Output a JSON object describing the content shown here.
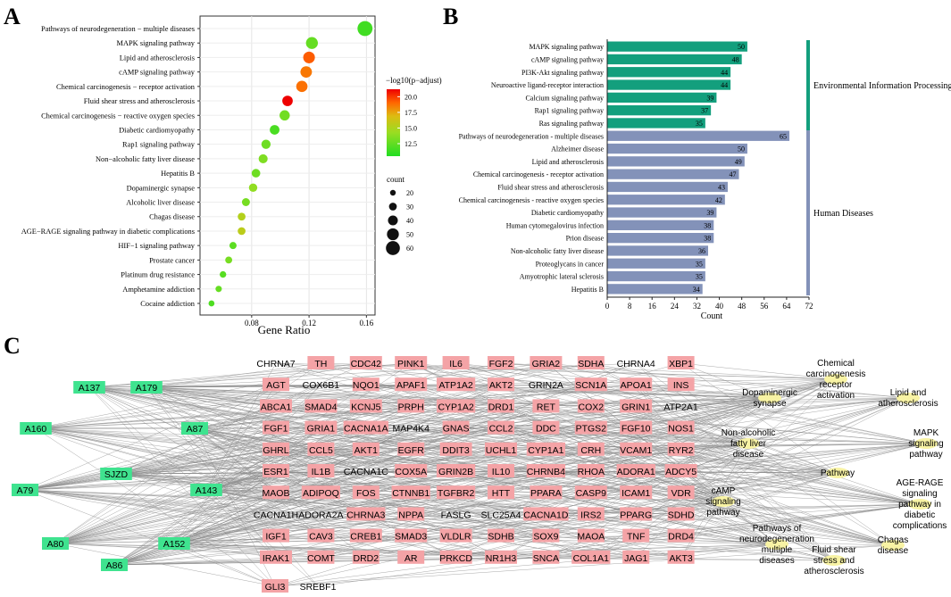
{
  "panels": {
    "a": "A",
    "b": "B",
    "c": "C"
  },
  "colors": {
    "env": "#139f7d",
    "human": "#8392b9",
    "gene": "#f4a3a6",
    "compound": "#3fe38f",
    "pathway": "#f8f3a4",
    "edge": "#8c8c8c"
  },
  "chart_data": [
    {
      "type": "scatter",
      "panel": "A",
      "xlabel": "Gene Ratio",
      "xlim": [
        0.044,
        0.166
      ],
      "xticks": [
        0.08,
        0.12,
        0.16
      ],
      "xtick_labels": [
        "0.08",
        "0.12",
        "0.16"
      ],
      "categories": [
        "Pathways of neurodegeneration − multiple diseases",
        "MAPK signaling pathway",
        "Lipid and atherosclerosis",
        "cAMP signaling pathway",
        "Chemical carcinogenesis − receptor activation",
        "Fluid shear stress and atherosclerosis",
        "Chemical carcinogenesis − reactive oxygen species",
        "Diabetic cardiomyopathy",
        "Rap1 signaling pathway",
        "Non−alcoholic fatty liver disease",
        "Hepatitis B",
        "Dopaminergic synapse",
        "Alcoholic liver disease",
        "Chagas disease",
        "AGE−RAGE signaling pathway in diabetic complications",
        "HIF−1 signaling pathway",
        "Prostate cancer",
        "Platinum drug resistance",
        "Amphetamine addiction",
        "Cocaine addiction"
      ],
      "x": [
        0.159,
        0.122,
        0.12,
        0.118,
        0.115,
        0.105,
        0.103,
        0.096,
        0.09,
        0.088,
        0.083,
        0.081,
        0.076,
        0.073,
        0.073,
        0.067,
        0.064,
        0.06,
        0.057,
        0.052
      ],
      "count": [
        65,
        50,
        49,
        48,
        47,
        43,
        42,
        39,
        37,
        36,
        34,
        33,
        31,
        30,
        30,
        27,
        26,
        24,
        23,
        21
      ],
      "neglog10_padj": [
        11.2,
        12.0,
        18.8,
        18.0,
        18.2,
        21.2,
        12.3,
        11.4,
        12.2,
        12.6,
        12.2,
        13.0,
        12.4,
        14.2,
        14.5,
        11.8,
        12.4,
        11.7,
        12.0,
        11.5
      ],
      "color_legend": {
        "title": "−log10(p−adjust)",
        "ticks": [
          "20.0",
          "17.5",
          "15.0",
          "12.5"
        ],
        "range": [
          10.5,
          21.2
        ],
        "colors": [
          "#22dd22",
          "#99dd22",
          "#ddbb11",
          "#ff6600",
          "#ee0000"
        ]
      },
      "size_legend": {
        "title": "count",
        "values": [
          20,
          30,
          40,
          50,
          60
        ]
      }
    },
    {
      "type": "bar",
      "panel": "B",
      "orientation": "horizontal",
      "xlabel": "Count",
      "xlim": [
        0,
        72
      ],
      "xticks": [
        0,
        8,
        16,
        24,
        32,
        40,
        48,
        56,
        64,
        72
      ],
      "series": [
        {
          "name": "Environmental Information Processing",
          "categories": [
            "MAPK signaling pathway",
            "cAMP signaling pathway",
            "PI3K-Akt signaling pathway",
            "Neuroactive ligand-receptor interaction",
            "Calcium signaling pathway",
            "Rap1 signaling pathway",
            "Ras signaling pathway"
          ],
          "values": [
            50,
            48,
            44,
            44,
            39,
            37,
            35
          ]
        },
        {
          "name": "Human Diseases",
          "categories": [
            "Pathways of neurodegeneration - multiple diseases",
            "Alzheimer disease",
            "Lipid and atherosclerosis",
            "Chemical carcinogenesis - receptor activation",
            "Fluid shear stress and atherosclerosis",
            "Chemical carcinogenesis - reactive oxygen species",
            "Diabetic cardiomyopathy",
            "Human cytomegalovirus infection",
            "Prion disease",
            "Non-alcoholic fatty liver disease",
            "Proteoglycans in cancer",
            "Amyotrophic lateral sclerosis",
            "Hepatitis B"
          ],
          "values": [
            65,
            50,
            49,
            47,
            43,
            42,
            39,
            38,
            38,
            36,
            35,
            35,
            34
          ]
        }
      ]
    }
  ],
  "network": {
    "compounds": [
      "A137",
      "A179",
      "A160",
      "A87",
      "SJZD",
      "A79",
      "A143",
      "A80",
      "A152",
      "A86"
    ],
    "genes": [
      [
        "CHRNA7",
        "TH",
        "CDC42",
        "PINK1",
        "IL6",
        "FGF2",
        "GRIA2",
        "SDHA",
        "CHRNA4",
        "XBP1"
      ],
      [
        "AGT",
        "COX6B1",
        "NQO1",
        "APAF1",
        "ATP1A2",
        "AKT2",
        "GRIN2A",
        "SCN1A",
        "APOA1",
        "INS"
      ],
      [
        "ABCA1",
        "SMAD4",
        "KCNJ5",
        "PRPH",
        "CYP1A2",
        "DRD1",
        "RET",
        "COX2",
        "GRIN1",
        "ATP2A1"
      ],
      [
        "FGF1",
        "GRIA1",
        "CACNA1A",
        "MAP4K4",
        "GNAS",
        "CCL2",
        "DDC",
        "PTGS2",
        "FGF10",
        "NOS1"
      ],
      [
        "GHRL",
        "CCL5",
        "AKT1",
        "EGFR",
        "DDIT3",
        "UCHL1",
        "CYP1A1",
        "CRH",
        "VCAM1",
        "RYR2"
      ],
      [
        "ESR1",
        "IL1B",
        "CACNA1C",
        "COX5A",
        "GRIN2B",
        "IL10",
        "CHRNB4",
        "RHOA",
        "ADORA1",
        "ADCY5"
      ],
      [
        "MAOB",
        "ADIPOQ",
        "FOS",
        "CTNNB1",
        "TGFBR2",
        "HTT",
        "PPARA",
        "CASP9",
        "ICAM1",
        "VDR"
      ],
      [
        "CACNA1H",
        "ADORA2A",
        "CHRNA3",
        "NPPA",
        "FASLG",
        "SLC25A4",
        "CACNA1D",
        "IRS2",
        "PPARG",
        "SDHD"
      ],
      [
        "IGF1",
        "CAV3",
        "CREB1",
        "SMAD3",
        "VLDLR",
        "SDHB",
        "SOX9",
        "MAOA",
        "TNF",
        "DRD4"
      ],
      [
        "IRAK1",
        "COMT",
        "DRD2",
        "AR",
        "PRKCD",
        "NR1H3",
        "SNCA",
        "COL1A1",
        "JAG1",
        "AKT3"
      ],
      [
        "GLI3",
        "SREBF1"
      ]
    ],
    "highlighted_genes": [
      "TH",
      "IL6",
      "SDHA",
      "XBP1",
      "AGT",
      "NQO1",
      "ATP1A2",
      "AKT2",
      "APOA1",
      "INS",
      "ABCA1",
      "KCNJ5",
      "PRPH",
      "CYP1A2",
      "DRD1",
      "RET",
      "COX2",
      "GRIN1",
      "FGF1",
      "GRIA1",
      "GNAS",
      "CCL2",
      "DDC",
      "FGF10",
      "NOS1",
      "GHRL",
      "CCL5",
      "AKT1",
      "EGFR",
      "DDIT3",
      "UCHL1",
      "CYP1A1",
      "CRH",
      "VCAM1",
      "RYR2",
      "ESR1",
      "IL1B",
      "IL10",
      "RHOA",
      "ADORA1",
      "ADCY5",
      "MAOB",
      "FOS",
      "HTT",
      "CASP9",
      "ICAM1",
      "VDR",
      "NPPA",
      "IRS2",
      "SDHD",
      "IGF1",
      "SMAD3",
      "SDHB",
      "TNF",
      "DRD4",
      "IRAK1",
      "COMT",
      "DRD2",
      "AR",
      "SNCA",
      "COL1A1",
      "JAG1",
      "AKT3",
      "GLI3",
      "PINK1",
      "FGF2",
      "GRIA2",
      "CDC42",
      "SMAD4",
      "APAF1",
      "DRD1",
      "SCN1A",
      "CACNA1A",
      "PTGS2",
      "CCL5",
      "COX5A",
      "GRIN2B",
      "CHRNB4",
      "CTNNB1",
      "PPARA",
      "PPARG",
      "CHRNA3",
      "CACNA1D",
      "CAV3",
      "SOX9",
      "VLDLR",
      "PRKCD",
      "NR1H3",
      "CREB1",
      "TGFBR2",
      "ADIPOQ",
      "MAOA"
    ],
    "pathways": [
      "Chemical carcinogenesis receptor activation",
      "Dopaminergic synapse",
      "Lipid and atherosclerosis",
      "Non-alcoholic fatty liver disease",
      "MAPK signaling pathway",
      "Pathway",
      "AGE-RAGE signaling pathway in diabetic complications",
      "cAMP signaling pathway",
      "Pathways of neurodegeneration multiple diseases",
      "Chagas disease",
      "Fluid shear stress and atherosclerosis"
    ]
  }
}
